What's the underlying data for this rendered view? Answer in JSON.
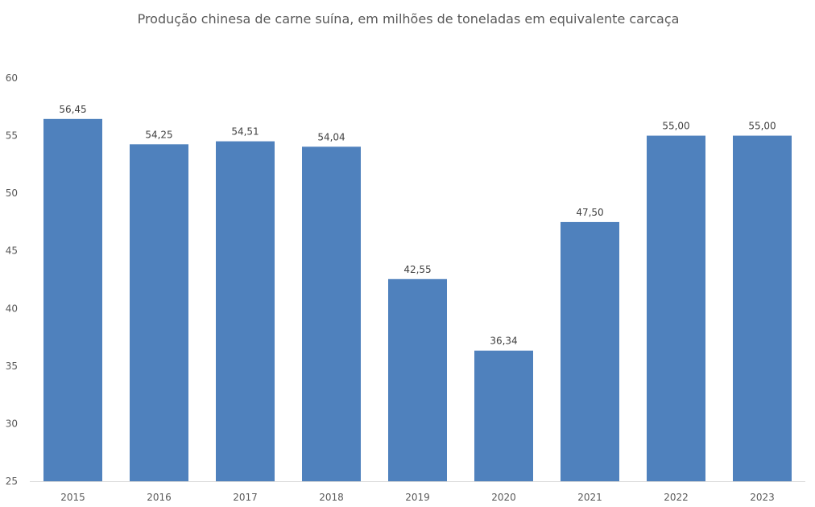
{
  "chart_data": {
    "type": "bar",
    "title": "Produção chinesa de carne suína, em milhões de toneladas em equivalente carcaça",
    "xlabel": "",
    "ylabel": "",
    "categories": [
      "2015",
      "2016",
      "2017",
      "2018",
      "2019",
      "2020",
      "2021",
      "2022",
      "2023"
    ],
    "values": [
      56.45,
      54.25,
      54.51,
      54.04,
      42.55,
      36.34,
      47.5,
      55.0,
      55.0
    ],
    "data_labels": [
      "56,45",
      "54,25",
      "54,51",
      "54,04",
      "42,55",
      "36,34",
      "47,50",
      "55,00",
      "55,00"
    ],
    "ylim": [
      25,
      60
    ],
    "yticks": [
      25,
      30,
      35,
      40,
      45,
      50,
      55,
      60
    ],
    "ytick_labels": [
      "25",
      "30",
      "35",
      "40",
      "45",
      "50",
      "55",
      "60"
    ],
    "grid": false,
    "legend": "none",
    "bar_color": "#4f81bd",
    "axis_color": "#d9d9d9"
  }
}
